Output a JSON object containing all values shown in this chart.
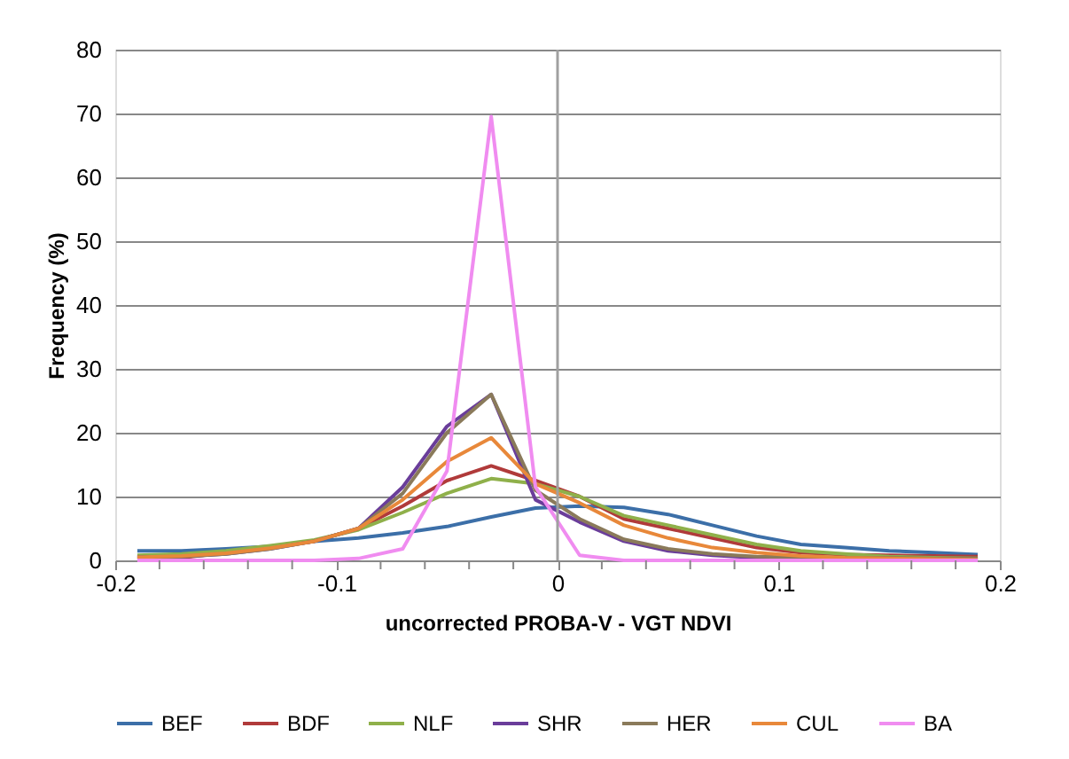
{
  "chart_data": {
    "type": "line",
    "xlabel": "uncorrected PROBA-V - VGT NDVI",
    "ylabel": "Frequency (%)",
    "x": [
      -0.19,
      -0.17,
      -0.15,
      -0.13,
      -0.11,
      -0.09,
      -0.07,
      -0.05,
      -0.03,
      -0.01,
      0.01,
      0.03,
      0.05,
      0.07,
      0.09,
      0.11,
      0.13,
      0.15,
      0.17,
      0.19
    ],
    "series": [
      {
        "name": "BEF",
        "color": "#3c6fa8",
        "values": [
          1.5,
          1.5,
          1.8,
          2.2,
          3,
          3.5,
          4.3,
          5.3,
          6.8,
          8.2,
          8.5,
          8.3,
          7.2,
          5.5,
          3.8,
          2.5,
          2,
          1.5,
          1.2,
          0.9
        ]
      },
      {
        "name": "BDF",
        "color": "#b03a3a",
        "values": [
          0.2,
          0.4,
          1.2,
          2,
          3,
          5,
          8.5,
          12.5,
          14.8,
          12.5,
          10,
          6.5,
          5,
          3.5,
          2,
          1.2,
          0.9,
          0.8,
          0.7,
          0.6
        ]
      },
      {
        "name": "NLF",
        "color": "#8fb04a",
        "values": [
          0.8,
          1,
          1.5,
          2.3,
          3.2,
          4.8,
          7.5,
          10.5,
          12.8,
          12,
          10,
          7,
          5.5,
          4,
          2.5,
          1.5,
          1,
          0.6,
          0.4,
          0.3
        ]
      },
      {
        "name": "SHR",
        "color": "#6a3d9a",
        "values": [
          0.5,
          0.6,
          1,
          1.8,
          3,
          5,
          11.5,
          21,
          26,
          9.5,
          6,
          3,
          1.5,
          0.8,
          0.4,
          0.2,
          0.1,
          0.1,
          0.1,
          0.1
        ]
      },
      {
        "name": "HER",
        "color": "#8a7a5a",
        "values": [
          0.5,
          0.6,
          1,
          1.8,
          3,
          5,
          10.5,
          20,
          26,
          11,
          6.5,
          3.3,
          1.8,
          1,
          0.6,
          0.5,
          0.4,
          0.4,
          0.3,
          0.3
        ]
      },
      {
        "name": "CUL",
        "color": "#e8883a",
        "values": [
          0.5,
          0.7,
          1.1,
          1.9,
          3,
          5,
          9.5,
          15.5,
          19.2,
          12,
          9,
          5.5,
          3.5,
          2,
          1.2,
          0.7,
          0.4,
          0.3,
          0.2,
          0.1
        ]
      },
      {
        "name": "BA",
        "color": "#f08cf0",
        "values": [
          0,
          0,
          0,
          0,
          0,
          0.3,
          1.8,
          14,
          69.5,
          11.5,
          0.8,
          0,
          0,
          0,
          0,
          0,
          0,
          0,
          0,
          0
        ]
      }
    ],
    "xlim": [
      -0.2,
      0.2
    ],
    "xticks": [
      -0.2,
      {
        "value": -0.18,
        "label": null
      },
      {
        "value": -0.16,
        "label": null
      },
      {
        "value": -0.14,
        "label": null
      },
      {
        "value": -0.12,
        "label": null
      },
      -0.1,
      {
        "value": -0.08,
        "label": null
      },
      {
        "value": -0.06,
        "label": null
      },
      {
        "value": -0.04,
        "label": null
      },
      {
        "value": -0.02,
        "label": null
      },
      0,
      {
        "value": 0.02,
        "label": null
      },
      {
        "value": 0.04,
        "label": null
      },
      {
        "value": 0.06,
        "label": null
      },
      {
        "value": 0.08,
        "label": null
      },
      0.1,
      {
        "value": 0.12,
        "label": null
      },
      {
        "value": 0.14,
        "label": null
      },
      {
        "value": 0.16,
        "label": null
      },
      {
        "value": 0.18,
        "label": null
      },
      0.2
    ],
    "ylim": [
      0,
      80
    ],
    "yticks": [
      0,
      10,
      20,
      30,
      40,
      50,
      60,
      70,
      80
    ],
    "ref_lines": [
      {
        "axis": "x",
        "value": 0,
        "color": "#a0a0a0"
      }
    ],
    "grid": "y",
    "legend": "bottom",
    "marker": "none",
    "line_style": "solid"
  }
}
